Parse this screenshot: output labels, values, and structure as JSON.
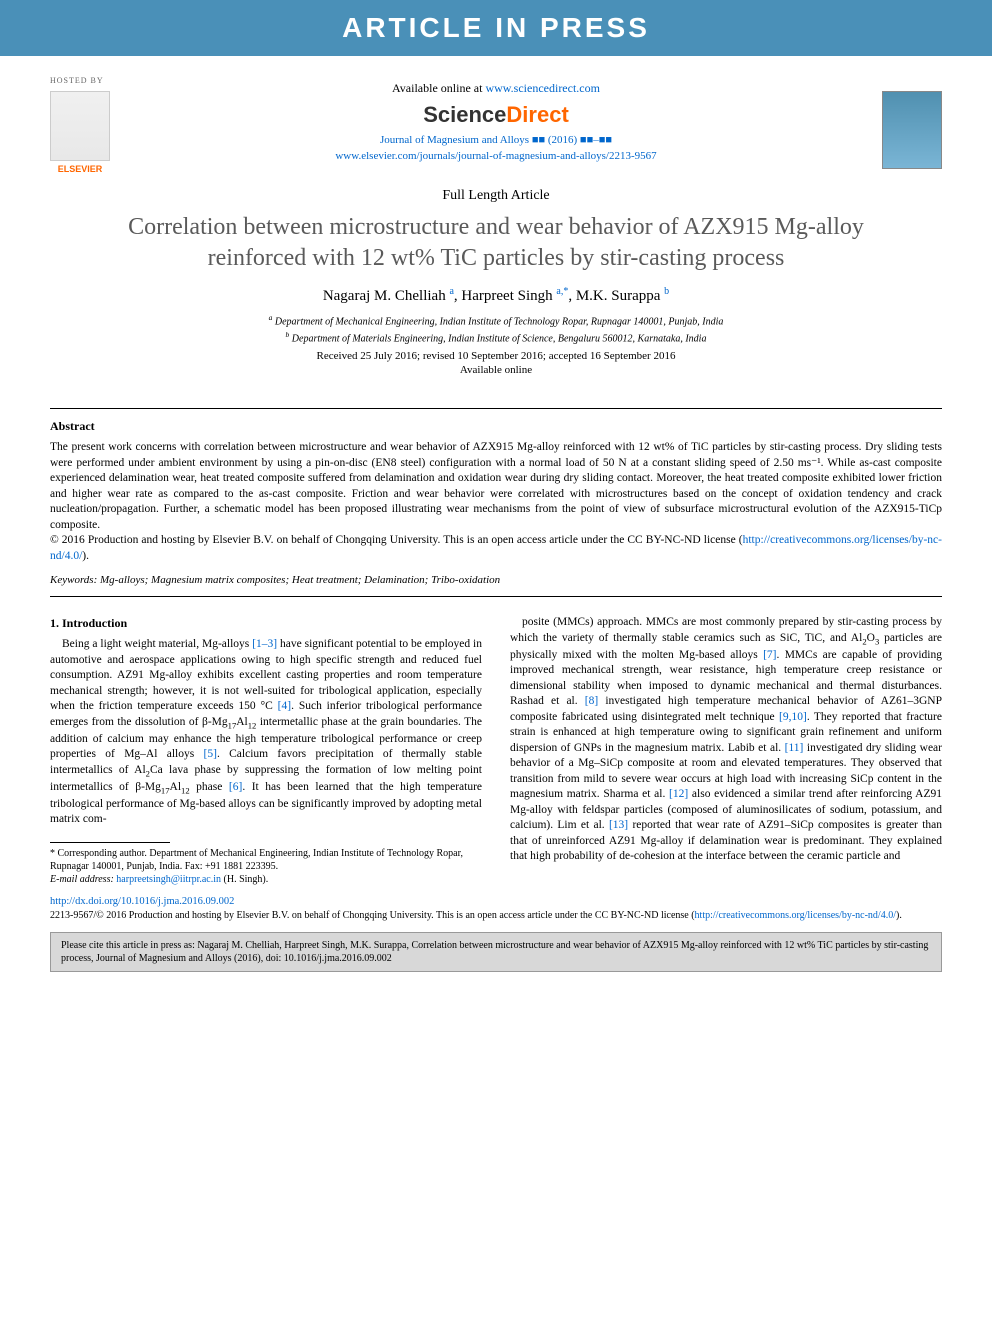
{
  "banner": {
    "text": "ARTICLE IN PRESS",
    "bg_color": "#4a90b8",
    "fg_color": "#ffffff",
    "fontsize": 28
  },
  "header": {
    "hosted_by_label": "HOSTED BY",
    "elsevier_name": "ELSEVIER",
    "available_prefix": "Available online at ",
    "available_url": "www.sciencedirect.com",
    "sciencedirect_logo": {
      "part1": "Science",
      "part2": "Direct",
      "color1": "#555555",
      "color2": "#ff6600"
    },
    "journal_citation": "Journal of Magnesium and Alloys ■■ (2016) ■■–■■",
    "journal_url": "www.elsevier.com/journals/journal-of-magnesium-and-alloys/2213-9567"
  },
  "article": {
    "type": "Full Length Article",
    "title": "Correlation between microstructure and wear behavior of AZX915 Mg-alloy reinforced with 12 wt% TiC particles by stir-casting process",
    "title_color": "#5a5a5a",
    "title_fontsize": 24,
    "authors": [
      {
        "name": "Nagaraj M. Chelliah",
        "sup": "a"
      },
      {
        "name": "Harpreet Singh",
        "sup": "a,*"
      },
      {
        "name": "M.K. Surappa",
        "sup": "b"
      }
    ],
    "affiliations": [
      {
        "sup": "a",
        "text": "Department of Mechanical Engineering, Indian Institute of Technology Ropar, Rupnagar 140001, Punjab, India"
      },
      {
        "sup": "b",
        "text": "Department of Materials Engineering, Indian Institute of Science, Bengaluru 560012, Karnataka, India"
      }
    ],
    "dates": "Received 25 July 2016; revised 10 September 2016; accepted 16 September 2016",
    "available_online": "Available online"
  },
  "abstract": {
    "heading": "Abstract",
    "text_part1": "The present work concerns with correlation between microstructure and wear behavior of AZX915 Mg-alloy reinforced with 12 wt% of TiC particles by stir-casting process. Dry sliding tests were performed under ambient environment by using a pin-on-disc (EN8 steel) configuration with a normal load of 50 N at a constant sliding speed of 2.50 ms⁻¹. While as-cast composite experienced delamination wear, heat treated composite suffered from delamination and oxidation wear during dry sliding contact. Moreover, the heat treated composite exhibited lower friction and higher wear rate as compared to the as-cast composite. Friction and wear behavior were correlated with microstructures based on the concept of oxidation tendency and crack nucleation/propagation. Further, a schematic model has been proposed illustrating wear mechanisms from the point of view of subsurface microstructural evolution of the AZX915-TiCp composite.",
    "copyright": "© 2016 Production and hosting by Elsevier B.V. on behalf of Chongqing University. This is an open access article under the CC BY-NC-ND license (",
    "license_url": "http://creativecommons.org/licenses/by-nc-nd/4.0/",
    "copyright_close": ")."
  },
  "keywords": {
    "label": "Keywords:",
    "text": " Mg-alloys; Magnesium matrix composites; Heat treatment; Delamination; Tribo-oxidation"
  },
  "introduction": {
    "heading": "1. Introduction",
    "col1_html": "Being a light weight material, Mg-alloys <span class='ref'>[1–3]</span> have significant potential to be employed in automotive and aerospace applications owing to high specific strength and reduced fuel consumption. AZ91 Mg-alloy exhibits excellent casting properties and room temperature mechanical strength; however, it is not well-suited for tribological application, especially when the friction temperature exceeds 150 °C <span class='ref'>[4]</span>. Such inferior tribological performance emerges from the dissolution of β-Mg<sub>17</sub>Al<sub>12</sub> intermetallic phase at the grain boundaries. The addition of calcium may enhance the high temperature tribological performance or creep properties of Mg–Al alloys <span class='ref'>[5]</span>. Calcium favors precipitation of thermally stable intermetallics of Al<sub>2</sub>Ca lava phase by suppressing the formation of low melting point intermetallics of β-Mg<sub>17</sub>Al<sub>12</sub> phase <span class='ref'>[6]</span>. It has been learned that the high temperature tribological performance of Mg-based alloys can be significantly improved by adopting metal matrix com-",
    "col2_html": "posite (MMCs) approach. MMCs are most commonly prepared by stir-casting process by which the variety of thermally stable ceramics such as SiC, TiC, and Al<sub>2</sub>O<sub>3</sub> particles are physically mixed with the molten Mg-based alloys <span class='ref'>[7]</span>. MMCs are capable of providing improved mechanical strength, wear resistance, high temperature creep resistance or dimensional stability when imposed to dynamic mechanical and thermal disturbances. Rashad et al. <span class='ref'>[8]</span> investigated high temperature mechanical behavior of AZ61–3GNP composite fabricated using disintegrated melt technique <span class='ref'>[9,10]</span>. They reported that fracture strain is enhanced at high temperature owing to significant grain refinement and uniform dispersion of GNPs in the magnesium matrix. Labib et al. <span class='ref'>[11]</span> investigated dry sliding wear behavior of a Mg–SiCp composite at room and elevated temperatures. They observed that transition from mild to severe wear occurs at high load with increasing SiCp content in the magnesium matrix. Sharma et al. <span class='ref'>[12]</span> also evidenced a similar trend after reinforcing AZ91 Mg-alloy with feldspar particles (composed of aluminosilicates of sodium, potassium, and calcium). Lim et al. <span class='ref'>[13]</span> reported that wear rate of AZ91–SiCp composites is greater than that of unreinforced AZ91 Mg-alloy if delamination wear is predominant. They explained that high probability of de-cohesion at the interface between the ceramic particle and"
  },
  "footnote": {
    "corr_author": "* Corresponding author. Department of Mechanical Engineering, Indian Institute of Technology Ropar, Rupnagar 140001, Punjab, India. Fax: +91 1881 223395.",
    "email_label": "E-mail address: ",
    "email": "harpreetsingh@iitrpr.ac.in",
    "email_suffix": " (H. Singh)."
  },
  "doi": {
    "url_text": "http://dx.doi.org/10.1016/j.jma.2016.09.002"
  },
  "bottom_copyright": {
    "issn_line": "2213-9567/© 2016 Production and hosting by Elsevier B.V. on behalf of Chongqing University. This is an open access article under the CC BY-NC-ND license (",
    "license_url": "http://creativecommons.org/licenses/by-nc-nd/4.0/",
    "close": ")."
  },
  "cite_box": {
    "text": "Please cite this article in press as: Nagaraj M. Chelliah, Harpreet Singh, M.K. Surappa, Correlation between microstructure and wear behavior of AZX915 Mg-alloy reinforced with 12 wt% TiC particles by stir-casting process, Journal of Magnesium and Alloys (2016), doi: 10.1016/j.jma.2016.09.002",
    "bg_color": "#d8d8d8"
  },
  "colors": {
    "link": "#0066cc",
    "ref": "#0066cc",
    "title": "#5a5a5a",
    "banner_bg": "#4a90b8"
  }
}
